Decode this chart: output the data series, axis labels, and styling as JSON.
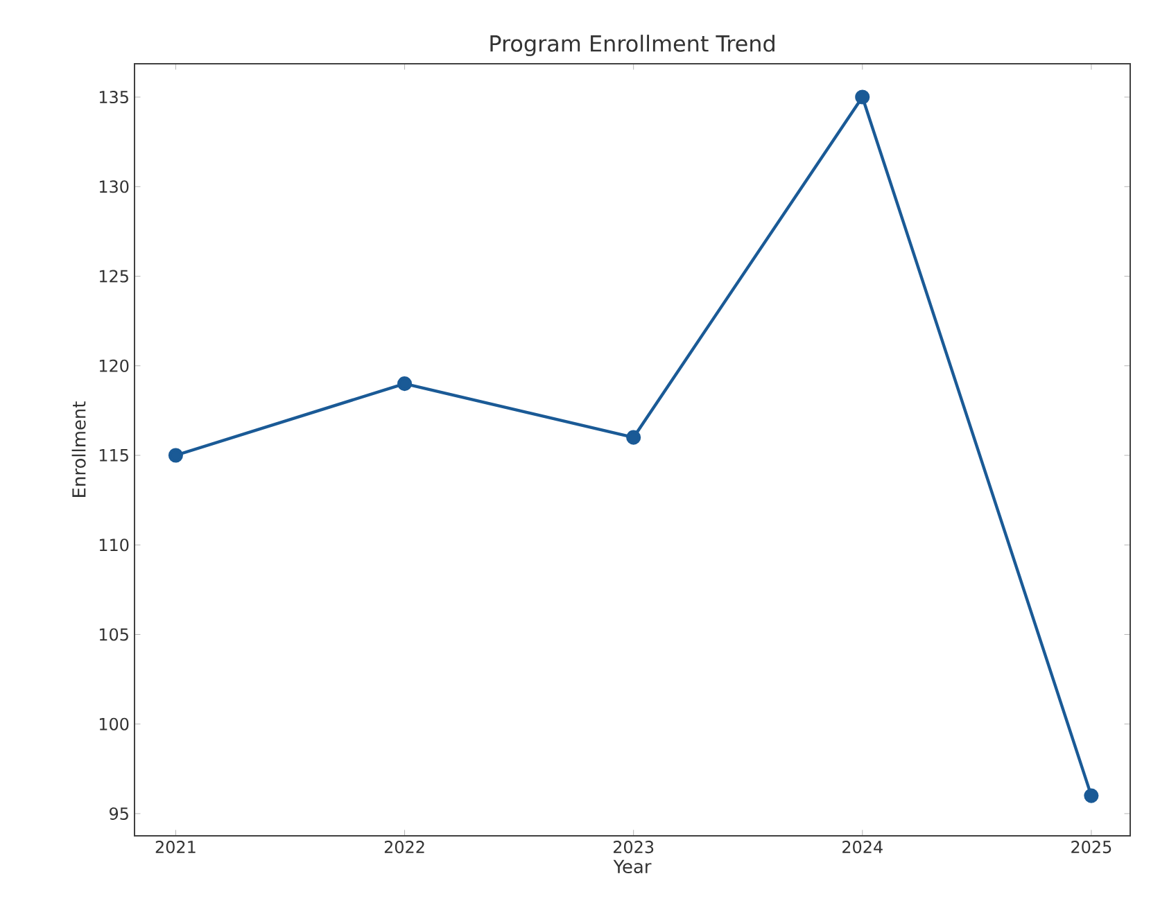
{
  "chart_data": {
    "type": "line",
    "title": "Program Enrollment Trend",
    "xlabel": "Year",
    "ylabel": "Enrollment",
    "x": [
      2021,
      2022,
      2023,
      2024,
      2025
    ],
    "series": [
      {
        "color": "#1a5a96",
        "values": [
          115,
          119,
          116,
          135,
          96
        ]
      }
    ],
    "xlim": [
      2020.82,
      2025.17
    ],
    "ylim": [
      93.76,
      136.86
    ],
    "xticks": [
      2021,
      2022,
      2023,
      2024,
      2025
    ],
    "yticks": [
      95,
      100,
      105,
      110,
      115,
      120,
      125,
      130,
      135
    ],
    "grid": false,
    "marker": "circle",
    "line_style": "solid"
  }
}
